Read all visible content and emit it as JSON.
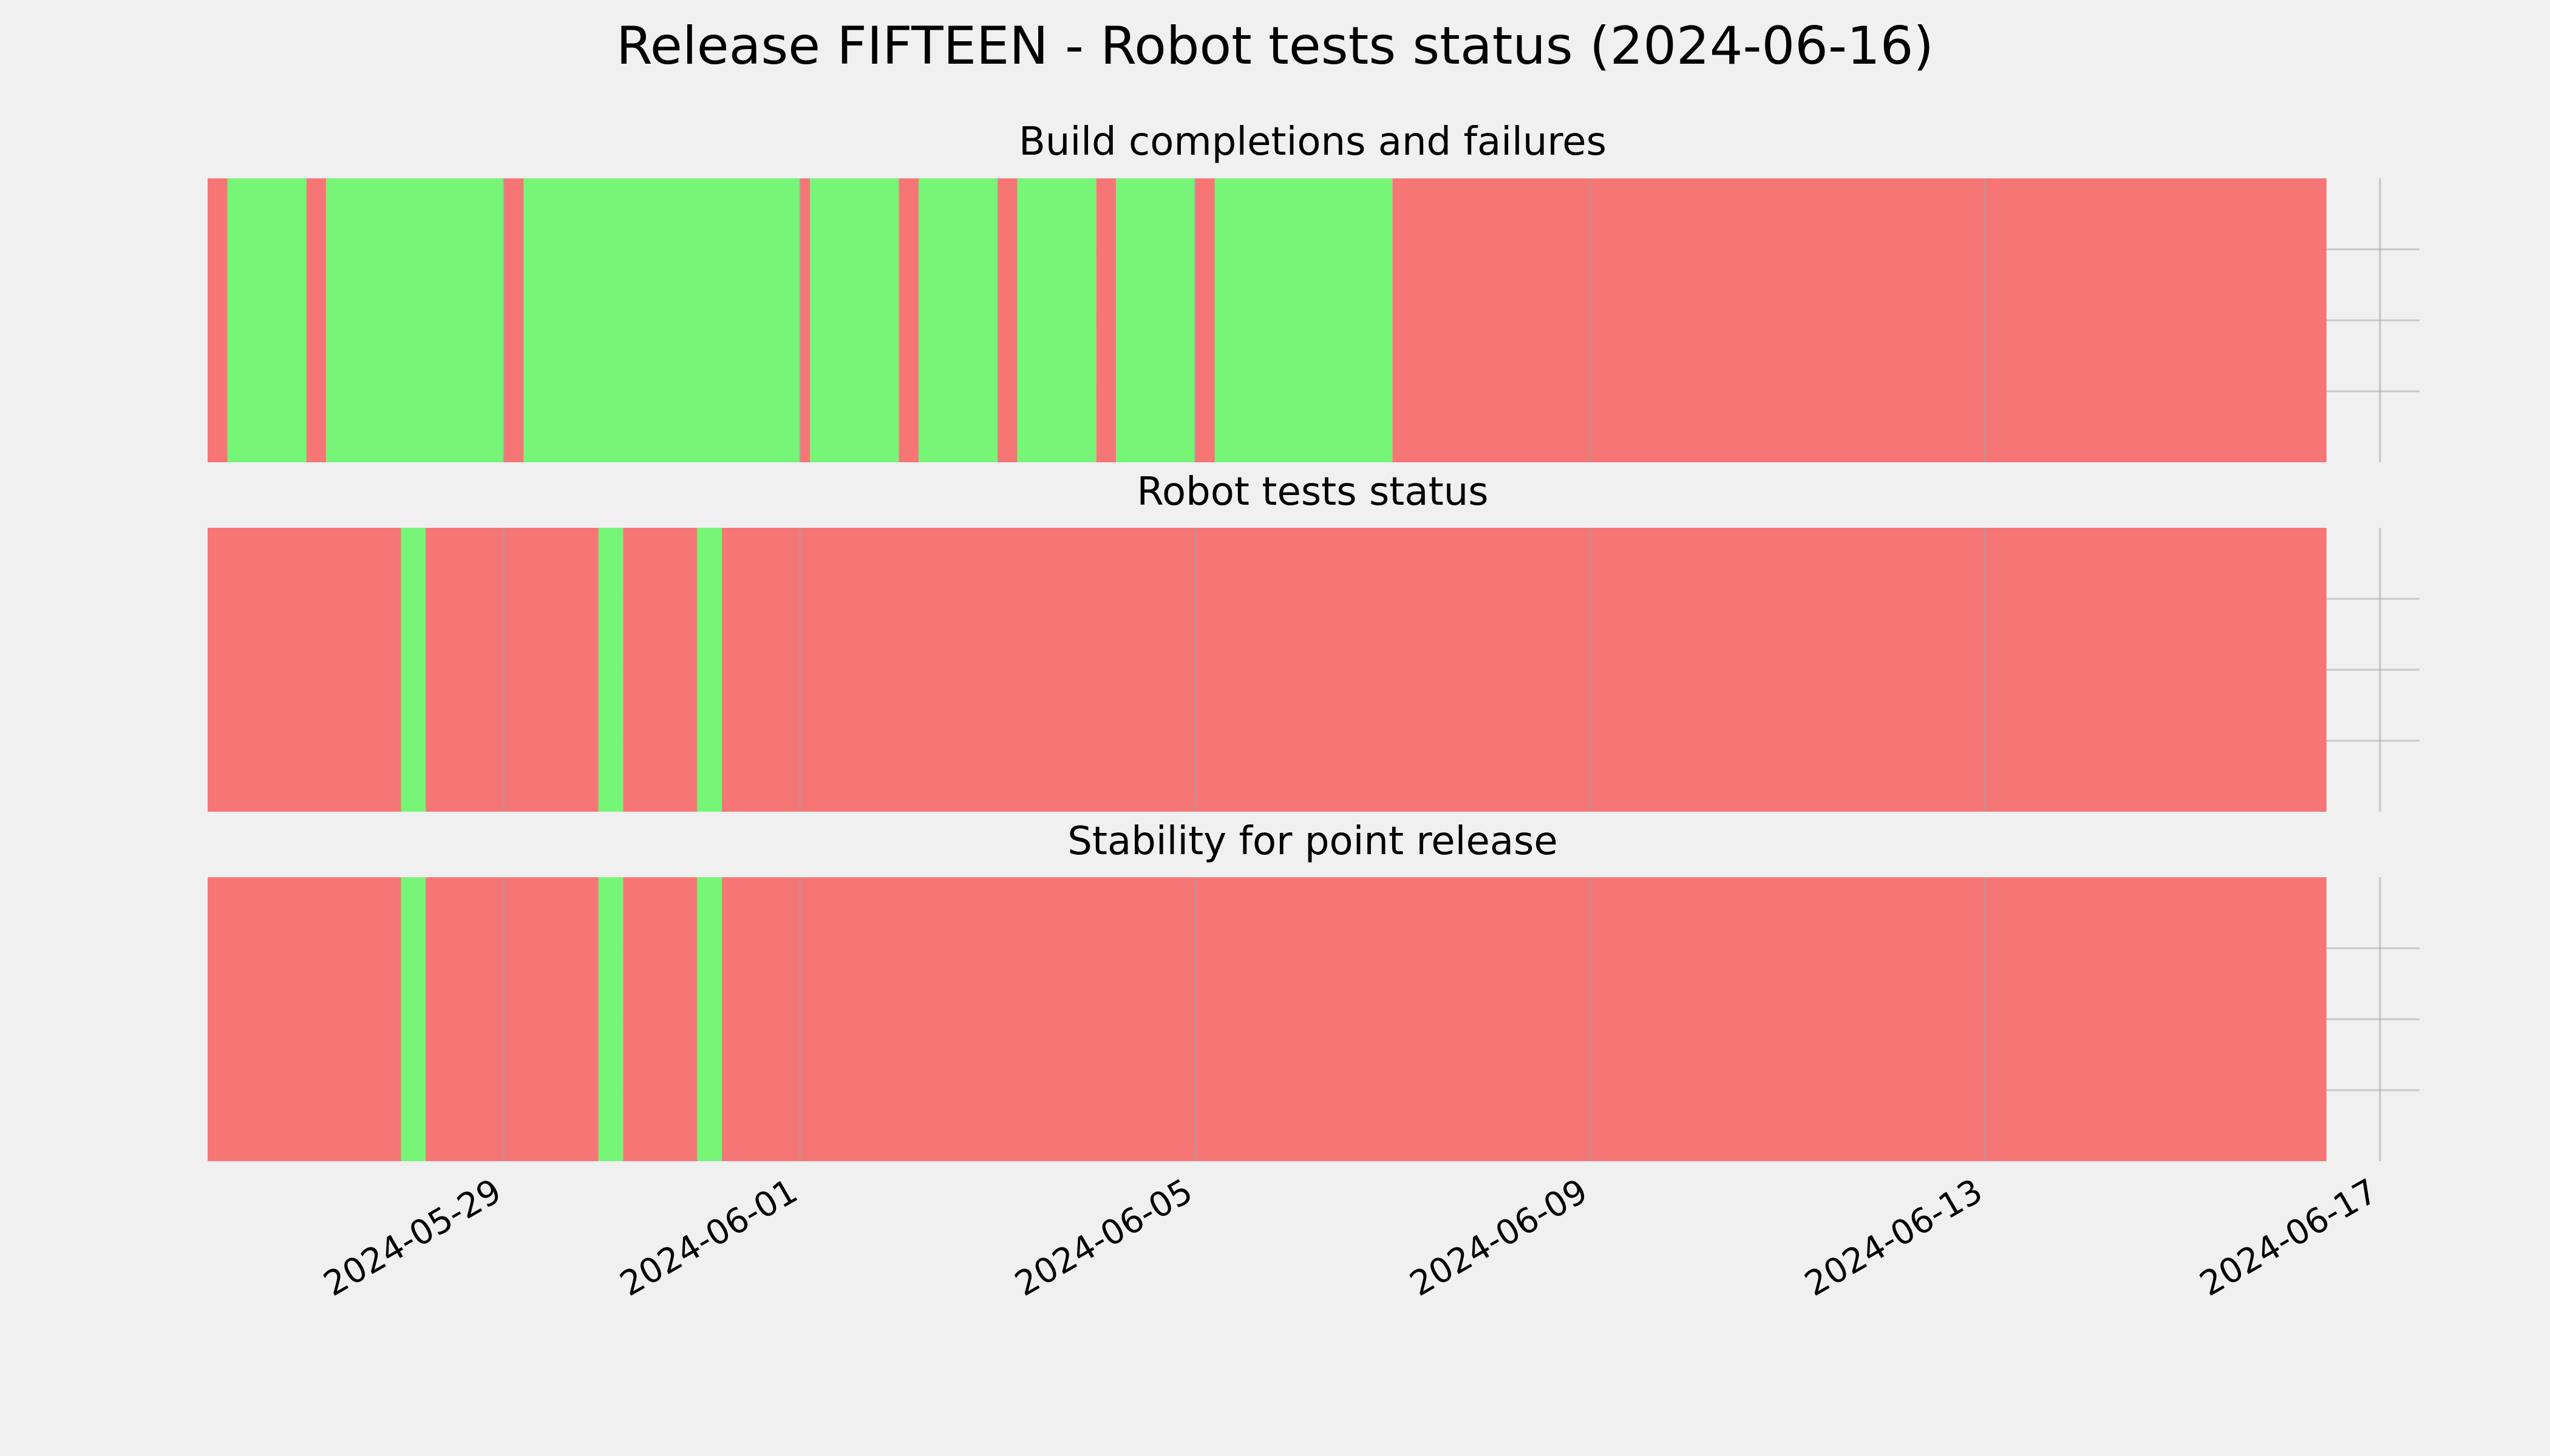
{
  "title": "Release FIFTEEN - Robot tests status (2024-06-16)",
  "colors": {
    "pass": "#76f576",
    "fail": "#f67676",
    "background": "#f0f0f0",
    "grid": "#c8c8c8"
  },
  "chart_data": [
    {
      "type": "timeline",
      "title": "Build completions and failures",
      "xlim": [
        "2024-05-26",
        "2024-06-17T09:36"
      ],
      "xticks": [
        "2024-05-29",
        "2024-06-01",
        "2024-06-05",
        "2024-06-09",
        "2024-06-13",
        "2024-06-17"
      ],
      "grid": true,
      "segments": [
        {
          "start": "2024-05-26T00:00",
          "end": "2024-05-26T04:48",
          "status": "fail"
        },
        {
          "start": "2024-05-26T04:48",
          "end": "2024-05-27T00:00",
          "status": "pass"
        },
        {
          "start": "2024-05-27T00:00",
          "end": "2024-05-27T04:48",
          "status": "fail"
        },
        {
          "start": "2024-05-27T04:48",
          "end": "2024-05-29T00:00",
          "status": "pass"
        },
        {
          "start": "2024-05-29T00:00",
          "end": "2024-05-29T04:48",
          "status": "fail"
        },
        {
          "start": "2024-05-29T04:48",
          "end": "2024-06-01T00:00",
          "status": "pass"
        },
        {
          "start": "2024-06-01T00:00",
          "end": "2024-06-01T02:24",
          "status": "fail"
        },
        {
          "start": "2024-06-01T02:24",
          "end": "2024-06-02T00:00",
          "status": "pass"
        },
        {
          "start": "2024-06-02T00:00",
          "end": "2024-06-02T04:48",
          "status": "fail"
        },
        {
          "start": "2024-06-02T04:48",
          "end": "2024-06-03T00:00",
          "status": "pass"
        },
        {
          "start": "2024-06-03T00:00",
          "end": "2024-06-03T04:48",
          "status": "fail"
        },
        {
          "start": "2024-06-03T04:48",
          "end": "2024-06-04T00:00",
          "status": "pass"
        },
        {
          "start": "2024-06-04T00:00",
          "end": "2024-06-04T04:48",
          "status": "fail"
        },
        {
          "start": "2024-06-04T04:48",
          "end": "2024-06-05T00:00",
          "status": "pass"
        },
        {
          "start": "2024-06-05T00:00",
          "end": "2024-06-05T04:48",
          "status": "fail"
        },
        {
          "start": "2024-06-05T04:48",
          "end": "2024-06-07T00:00",
          "status": "pass"
        },
        {
          "start": "2024-06-07T00:00",
          "end": "2024-06-16T11:00",
          "status": "fail"
        }
      ]
    },
    {
      "type": "timeline",
      "title": "Robot tests status",
      "xlim": [
        "2024-05-26",
        "2024-06-17T09:36"
      ],
      "xticks": [
        "2024-05-29",
        "2024-06-01",
        "2024-06-05",
        "2024-06-09",
        "2024-06-13",
        "2024-06-17"
      ],
      "grid": true,
      "segments": [
        {
          "start": "2024-05-26T00:00",
          "end": "2024-05-27T23:00",
          "status": "fail"
        },
        {
          "start": "2024-05-27T23:00",
          "end": "2024-05-28T05:00",
          "status": "pass"
        },
        {
          "start": "2024-05-28T05:00",
          "end": "2024-05-29T23:00",
          "status": "fail"
        },
        {
          "start": "2024-05-29T23:00",
          "end": "2024-05-30T05:00",
          "status": "pass"
        },
        {
          "start": "2024-05-30T05:00",
          "end": "2024-05-30T23:00",
          "status": "fail"
        },
        {
          "start": "2024-05-30T23:00",
          "end": "2024-05-31T05:00",
          "status": "pass"
        },
        {
          "start": "2024-05-31T05:00",
          "end": "2024-06-16T11:00",
          "status": "fail"
        }
      ]
    },
    {
      "type": "timeline",
      "title": "Stability for point release",
      "xlim": [
        "2024-05-26",
        "2024-06-17T09:36"
      ],
      "xticks": [
        "2024-05-29",
        "2024-06-01",
        "2024-06-05",
        "2024-06-09",
        "2024-06-13",
        "2024-06-17"
      ],
      "grid": true,
      "segments": [
        {
          "start": "2024-05-26T00:00",
          "end": "2024-05-27T23:00",
          "status": "fail"
        },
        {
          "start": "2024-05-27T23:00",
          "end": "2024-05-28T05:00",
          "status": "pass"
        },
        {
          "start": "2024-05-28T05:00",
          "end": "2024-05-29T23:00",
          "status": "fail"
        },
        {
          "start": "2024-05-29T23:00",
          "end": "2024-05-30T05:00",
          "status": "pass"
        },
        {
          "start": "2024-05-30T05:00",
          "end": "2024-05-30T23:00",
          "status": "fail"
        },
        {
          "start": "2024-05-30T23:00",
          "end": "2024-05-31T05:00",
          "status": "pass"
        },
        {
          "start": "2024-05-31T05:00",
          "end": "2024-06-16T11:00",
          "status": "fail"
        }
      ]
    }
  ]
}
